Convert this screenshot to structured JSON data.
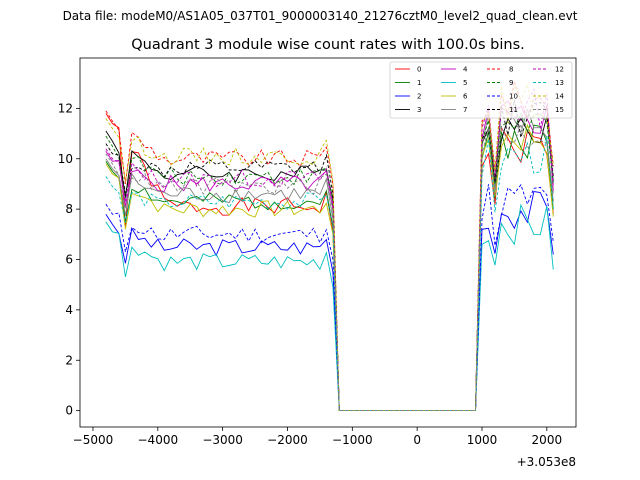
{
  "suptitle": "Data file: modeM0/AS1A05_037T01_9000003140_21276cztM0_level2_quad_clean.evt",
  "chart_data": {
    "type": "line",
    "title": "Quadrant 3 module wise count rates with 100.0s bins.",
    "xlabel": "",
    "ylabel": "",
    "x_offset_label": "+3.053e8",
    "xlim": [
      -5200,
      2450
    ],
    "ylim": [
      -0.65,
      14.0
    ],
    "xticks": [
      -5000,
      -4000,
      -3000,
      -2000,
      -1000,
      0,
      1000,
      2000
    ],
    "xtick_labels": [
      "−5000",
      "−4000",
      "−3000",
      "−2000",
      "−1000",
      "0",
      "1000",
      "2000"
    ],
    "yticks": [
      0,
      2,
      4,
      6,
      8,
      10,
      12
    ],
    "ytick_labels": [
      "0",
      "2",
      "4",
      "6",
      "8",
      "10",
      "12"
    ],
    "grid": false,
    "legend_position": "top-right",
    "legend_columns": 4,
    "series": [
      {
        "name": "0",
        "color": "#ff0000",
        "dash": "solid",
        "base": 8.1,
        "start": 11.8,
        "post": 10.5,
        "seed": 1
      },
      {
        "name": "1",
        "color": "#008000",
        "dash": "solid",
        "base": 8.3,
        "start": 9.9,
        "post": 10.8,
        "seed": 2
      },
      {
        "name": "2",
        "color": "#0000ff",
        "dash": "solid",
        "base": 6.5,
        "start": 7.8,
        "post": 8.0,
        "seed": 3
      },
      {
        "name": "3",
        "color": "#000000",
        "dash": "solid",
        "base": 9.4,
        "start": 11.1,
        "post": 11.4,
        "seed": 4
      },
      {
        "name": "4",
        "color": "#bf00bf",
        "dash": "solid",
        "base": 9.0,
        "start": 10.3,
        "post": 11.6,
        "seed": 5
      },
      {
        "name": "5",
        "color": "#00bfbf",
        "dash": "solid",
        "base": 5.9,
        "start": 7.5,
        "post": 7.4,
        "seed": 6
      },
      {
        "name": "6",
        "color": "#bfbf00",
        "dash": "solid",
        "base": 8.0,
        "start": 9.8,
        "post": 10.9,
        "seed": 7
      },
      {
        "name": "7",
        "color": "#808080",
        "dash": "solid",
        "base": 8.6,
        "start": 10.0,
        "post": 11.3,
        "seed": 8
      },
      {
        "name": "8",
        "color": "#ff0000",
        "dash": "dashed",
        "base": 10.0,
        "start": 11.9,
        "post": 12.3,
        "seed": 9
      },
      {
        "name": "9",
        "color": "#008000",
        "dash": "dashed",
        "base": 9.3,
        "start": 10.9,
        "post": 11.5,
        "seed": 10
      },
      {
        "name": "10",
        "color": "#0000ff",
        "dash": "dashed",
        "base": 7.0,
        "start": 8.2,
        "post": 8.4,
        "seed": 11
      },
      {
        "name": "11",
        "color": "#000000",
        "dash": "dashed",
        "base": 9.6,
        "start": 10.6,
        "post": 11.6,
        "seed": 12
      },
      {
        "name": "12",
        "color": "#bf00bf",
        "dash": "dashed",
        "base": 9.2,
        "start": 10.4,
        "post": 12.0,
        "seed": 13
      },
      {
        "name": "13",
        "color": "#00bfbf",
        "dash": "dashed",
        "base": 8.3,
        "start": 9.3,
        "post": 10.1,
        "seed": 14
      },
      {
        "name": "14",
        "color": "#bfbf00",
        "dash": "dashed",
        "base": 10.1,
        "start": 11.6,
        "post": 12.2,
        "seed": 15
      },
      {
        "name": "15",
        "color": "#808080",
        "dash": "dashed",
        "base": 8.9,
        "start": 10.2,
        "post": 11.0,
        "seed": 16
      }
    ],
    "time_segments": {
      "on1": [
        -4800,
        -1300
      ],
      "off": [
        -1200,
        900
      ],
      "on2": [
        1000,
        2100
      ],
      "step": 100
    }
  }
}
